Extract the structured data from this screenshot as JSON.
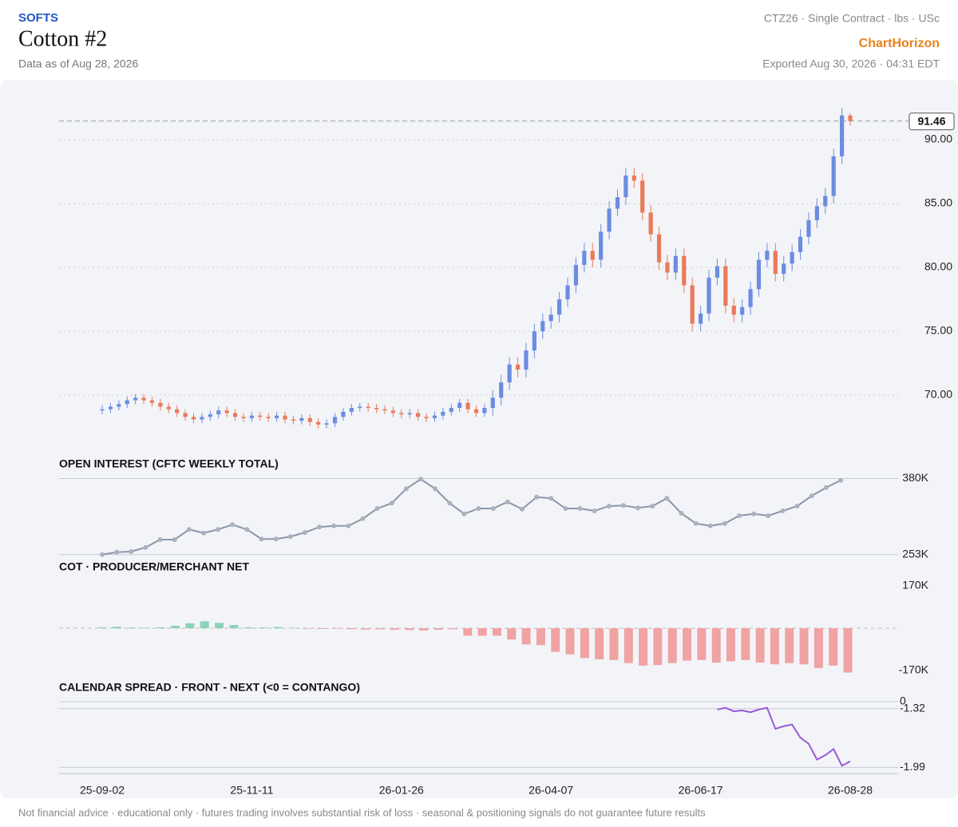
{
  "header": {
    "category": "SOFTS",
    "title": "Cotton #2",
    "subtitle": "Data as of Aug 28, 2026",
    "meta": "CTZ26 · Single Contract · lbs · USc",
    "brand": "ChartHorizon",
    "exported": "Exported Aug 30, 2026 · 04:31 EDT"
  },
  "footer": "Not financial advice · educational only · futures trading involves substantial risk of loss · seasonal & positioning signals do not guarantee future results",
  "chart_data": [
    {
      "type": "candlestick",
      "up_color": "#6b8ce0",
      "down_color": "#ea7a5a",
      "ylim": [
        65.94,
        94.69
      ],
      "yticks": [
        {
          "value": 70,
          "label": "70.00"
        },
        {
          "value": 75,
          "label": "75.00"
        },
        {
          "value": 80,
          "label": "80.00"
        },
        {
          "value": 85,
          "label": "85.00"
        },
        {
          "value": 90,
          "label": "90.00"
        }
      ],
      "grid": true,
      "categories": [
        "25-09-02",
        null,
        null,
        null,
        null,
        null,
        null,
        null,
        null,
        null,
        null,
        null,
        null,
        null,
        null,
        null,
        null,
        null,
        "25-11-11",
        null,
        null,
        null,
        null,
        null,
        null,
        null,
        null,
        null,
        null,
        null,
        null,
        null,
        null,
        null,
        null,
        null,
        "26-01-26",
        null,
        null,
        null,
        null,
        null,
        null,
        null,
        null,
        null,
        null,
        null,
        null,
        null,
        null,
        null,
        null,
        null,
        "26-04-07",
        null,
        null,
        null,
        null,
        null,
        null,
        null,
        null,
        null,
        null,
        null,
        null,
        null,
        null,
        null,
        null,
        null,
        "26-06-17",
        null,
        null,
        null,
        null,
        null,
        null,
        null,
        null,
        null,
        null,
        null,
        null,
        null,
        null,
        null,
        null,
        null,
        "26-08-28"
      ],
      "open": [
        68.8,
        68.9,
        69.1,
        69.3,
        69.6,
        69.8,
        69.6,
        69.4,
        69.1,
        68.9,
        68.6,
        68.3,
        68.1,
        68.3,
        68.5,
        68.8,
        68.6,
        68.3,
        68.2,
        68.4,
        68.3,
        68.2,
        68.4,
        68.1,
        68.0,
        68.2,
        67.9,
        67.7,
        67.8,
        68.3,
        68.7,
        69.0,
        69.1,
        69.0,
        68.9,
        68.8,
        68.6,
        68.5,
        68.6,
        68.3,
        68.2,
        68.4,
        68.7,
        69.0,
        69.4,
        68.9,
        68.6,
        69.0,
        69.8,
        71.0,
        72.4,
        72.0,
        73.5,
        75.0,
        75.8,
        76.3,
        77.5,
        78.6,
        80.2,
        81.3,
        80.6,
        82.8,
        84.6,
        85.5,
        87.2,
        86.8,
        84.3,
        82.6,
        80.4,
        79.6,
        80.9,
        78.6,
        75.6,
        76.4,
        79.2,
        80.1,
        77.0,
        76.3,
        76.9,
        78.3,
        80.6,
        81.3,
        79.5,
        80.3,
        81.2,
        82.4,
        83.7,
        84.8,
        85.6,
        88.7,
        91.9
      ],
      "high": [
        69.2,
        69.4,
        69.6,
        69.9,
        70.1,
        70.1,
        69.9,
        69.7,
        69.4,
        69.2,
        68.9,
        68.6,
        68.6,
        68.8,
        69.1,
        69.1,
        68.9,
        68.6,
        68.7,
        68.7,
        68.6,
        68.7,
        68.7,
        68.4,
        68.5,
        68.5,
        68.2,
        68.1,
        68.6,
        69.0,
        69.3,
        69.4,
        69.4,
        69.3,
        69.2,
        69.1,
        68.9,
        68.9,
        68.9,
        68.6,
        68.7,
        69.0,
        69.3,
        69.7,
        69.7,
        69.2,
        69.3,
        70.4,
        71.6,
        73.0,
        73.0,
        74.1,
        75.6,
        76.4,
        76.9,
        78.1,
        79.2,
        80.8,
        81.9,
        81.9,
        83.4,
        85.2,
        86.1,
        87.8,
        87.8,
        87.4,
        84.9,
        83.2,
        81.0,
        81.5,
        81.5,
        79.2,
        77.0,
        79.8,
        80.7,
        80.7,
        77.6,
        77.5,
        78.9,
        81.2,
        81.9,
        81.9,
        80.9,
        81.8,
        83.0,
        84.3,
        85.4,
        86.2,
        89.3,
        92.5,
        92.1
      ],
      "low": [
        68.5,
        68.6,
        68.8,
        69.0,
        69.3,
        69.3,
        69.1,
        68.8,
        68.6,
        68.3,
        68.0,
        67.8,
        67.8,
        68.0,
        68.2,
        68.3,
        68.0,
        67.9,
        67.9,
        68.0,
        67.9,
        67.9,
        67.8,
        67.7,
        67.7,
        67.6,
        67.4,
        67.4,
        67.5,
        68.0,
        68.4,
        68.7,
        68.7,
        68.6,
        68.5,
        68.3,
        68.2,
        68.2,
        68.0,
        67.9,
        67.9,
        68.1,
        68.4,
        68.7,
        68.6,
        68.3,
        68.3,
        68.4,
        69.2,
        70.4,
        71.4,
        71.4,
        72.9,
        74.4,
        75.2,
        75.7,
        76.9,
        78.0,
        79.6,
        80.0,
        80.0,
        82.2,
        84.0,
        84.9,
        86.2,
        83.7,
        82.0,
        79.8,
        79.0,
        79.0,
        78.0,
        75.0,
        75.0,
        75.8,
        78.6,
        76.4,
        75.7,
        75.7,
        76.3,
        77.7,
        80.0,
        78.9,
        78.9,
        79.7,
        80.6,
        81.8,
        83.1,
        84.2,
        85.0,
        88.1,
        91.1
      ],
      "close": [
        68.9,
        69.1,
        69.3,
        69.6,
        69.8,
        69.6,
        69.4,
        69.1,
        68.9,
        68.6,
        68.3,
        68.1,
        68.3,
        68.5,
        68.8,
        68.6,
        68.3,
        68.2,
        68.4,
        68.3,
        68.2,
        68.4,
        68.1,
        68.0,
        68.2,
        67.9,
        67.7,
        67.8,
        68.3,
        68.7,
        69.0,
        69.1,
        69.0,
        68.9,
        68.8,
        68.6,
        68.5,
        68.6,
        68.3,
        68.2,
        68.4,
        68.7,
        69.0,
        69.4,
        68.9,
        68.6,
        69.0,
        69.8,
        71.0,
        72.4,
        72.0,
        73.5,
        75.0,
        75.8,
        76.3,
        77.5,
        78.6,
        80.2,
        81.3,
        80.6,
        82.8,
        84.6,
        85.5,
        87.2,
        86.8,
        84.3,
        82.6,
        80.4,
        79.6,
        80.9,
        78.6,
        75.6,
        76.4,
        79.2,
        80.1,
        77.0,
        76.3,
        76.9,
        78.3,
        80.6,
        81.3,
        79.5,
        80.3,
        81.2,
        82.4,
        83.7,
        84.8,
        85.6,
        88.7,
        91.9,
        91.46
      ]
    },
    {
      "type": "line",
      "title": "OPEN INTEREST (CFTC WEEKLY TOTAL)",
      "color": "#8a96a8",
      "ylim": [
        250000,
        382000
      ],
      "yticks": [
        {
          "value": 380000,
          "label": "380K"
        },
        {
          "value": 253000,
          "label": "253K"
        }
      ],
      "values": [
        253000,
        257000,
        258000,
        265000,
        278000,
        278000,
        295000,
        289000,
        295000,
        303000,
        295000,
        279000,
        279000,
        283000,
        290000,
        299000,
        301000,
        301000,
        313000,
        330000,
        339000,
        363000,
        379000,
        363000,
        339000,
        321000,
        330000,
        330000,
        341000,
        329000,
        349000,
        347000,
        330000,
        330000,
        326000,
        334000,
        335000,
        331000,
        334000,
        347000,
        322000,
        305000,
        301000,
        305000,
        318000,
        321000,
        318000,
        326000,
        334000,
        351000,
        365000,
        377000
      ]
    },
    {
      "type": "bar",
      "title": "COT · PRODUCER/MERCHANT NET",
      "positive_color": "#8dd3b8",
      "negative_color": "#f0a3a3",
      "ylim": [
        -202000,
        215000
      ],
      "yticks": [
        {
          "value": 170000,
          "label": "170K"
        },
        {
          "value": -170000,
          "label": "-170K"
        }
      ],
      "values": [
        4000,
        6000,
        3000,
        2000,
        4000,
        10000,
        20000,
        28000,
        22000,
        13000,
        4000,
        3000,
        5000,
        2000,
        -2000,
        -3000,
        -2000,
        -4000,
        -5000,
        -4000,
        -6000,
        -7000,
        -9000,
        -6000,
        -4000,
        -30000,
        -30000,
        -30000,
        -45000,
        -65000,
        -68000,
        -95000,
        -105000,
        -120000,
        -125000,
        -128000,
        -140000,
        -150000,
        -148000,
        -140000,
        -130000,
        -128000,
        -138000,
        -133000,
        -128000,
        -138000,
        -145000,
        -140000,
        -145000,
        -160000,
        -150000,
        -178000
      ]
    },
    {
      "type": "line",
      "title": "CALENDAR SPREAD · FRONT - NEXT (<0 = CONTANGO)",
      "color": "#9b59d6",
      "ylim": [
        -2.05,
        -1.24
      ],
      "yticks": [
        0,
        -1.32,
        -1.99
      ],
      "values": [
        null,
        null,
        null,
        null,
        null,
        null,
        null,
        null,
        null,
        null,
        null,
        null,
        null,
        null,
        null,
        null,
        null,
        null,
        null,
        null,
        null,
        null,
        null,
        null,
        null,
        null,
        null,
        null,
        null,
        null,
        null,
        null,
        null,
        null,
        null,
        null,
        null,
        null,
        null,
        null,
        null,
        null,
        null,
        null,
        null,
        null,
        null,
        null,
        null,
        null,
        null,
        null,
        null,
        null,
        null,
        null,
        null,
        null,
        null,
        null,
        null,
        null,
        null,
        null,
        null,
        null,
        null,
        null,
        null,
        null,
        null,
        null,
        null,
        null,
        -1.33,
        -1.31,
        -1.35,
        -1.34,
        -1.36,
        -1.33,
        -1.31,
        -1.55,
        -1.52,
        -1.5,
        -1.65,
        -1.72,
        -1.9,
        -1.85,
        -1.78,
        -1.97,
        -1.92
      ]
    }
  ]
}
